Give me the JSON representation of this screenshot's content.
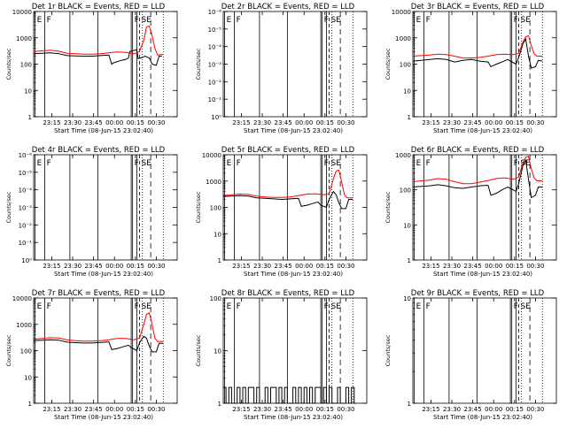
{
  "shared": {
    "x_tick_labels": [
      "23:15",
      "23:30",
      "23:45",
      "00:00",
      "00:15",
      "00:30"
    ],
    "x_label": "Start Time (08-Jun-15 23:02:40)",
    "y_label": "Counts/sec",
    "series_colors": {
      "events": "#000000",
      "lld": "#ff0000"
    }
  },
  "chart_data": [
    {
      "id": "det1",
      "type": "line",
      "title": "Det 1r BLACK = Events, RED = LLD",
      "yscale": "log",
      "ylim": [
        1,
        10000
      ],
      "y_ticks": [
        "1",
        "10",
        "100",
        "1000",
        "10000"
      ],
      "x_ticks": [
        "23:15",
        "23:30",
        "23:45",
        "00:00",
        "00:15",
        "00:30"
      ],
      "xlim": [
        "23:02",
        "00:45"
      ],
      "flags": [
        "E",
        "F",
        "F",
        "SE"
      ],
      "series": [
        {
          "key": "events",
          "x": [
            "23:02",
            "23:08",
            "23:14",
            "23:20",
            "23:26",
            "23:32",
            "23:38",
            "23:44",
            "23:50",
            "23:56",
            "23:58",
            "23:59",
            "00:01",
            "00:05",
            "00:08",
            "00:10",
            "00:11",
            "00:16",
            "00:17",
            "00:20",
            "00:22",
            "00:25",
            "00:27",
            "00:30",
            "00:32",
            "00:34"
          ],
          "y": [
            250,
            260,
            270,
            250,
            210,
            205,
            200,
            200,
            210,
            220,
            100,
            110,
            120,
            140,
            150,
            170,
            300,
            350,
            160,
            180,
            200,
            170,
            100,
            90,
            200,
            200
          ]
        },
        {
          "key": "lld",
          "x": [
            "23:02",
            "23:08",
            "23:14",
            "23:20",
            "23:26",
            "23:32",
            "23:38",
            "23:44",
            "23:50",
            "23:56",
            "00:02",
            "00:08",
            "00:14",
            "00:18",
            "00:21",
            "00:23",
            "00:25",
            "00:27",
            "00:29",
            "00:31",
            "00:33",
            "00:35"
          ],
          "y": [
            300,
            320,
            340,
            310,
            260,
            250,
            240,
            240,
            250,
            270,
            290,
            280,
            250,
            300,
            800,
            2600,
            2800,
            1200,
            400,
            220,
            230,
            230
          ]
        }
      ]
    },
    {
      "id": "det2",
      "type": "line",
      "title": "Det 2r BLACK = Events, RED = LLD",
      "yscale": "log",
      "ylim": [
        1,
        10000
      ],
      "y_ticks": [
        "10⁰",
        "10⁻¹",
        "10⁻²",
        "10⁻³",
        "10⁻⁴",
        "10⁻⁵",
        "10⁻⁶"
      ],
      "x_ticks": [
        "23:15",
        "23:30",
        "23:45",
        "00:00",
        "00:15",
        "00:30"
      ],
      "xlim": [
        "23:02",
        "00:45"
      ],
      "flags": [
        "E",
        "F",
        "F",
        "SE"
      ],
      "series": []
    },
    {
      "id": "det3",
      "type": "line",
      "title": "Det 3r BLACK = Events, RED = LLD",
      "yscale": "log",
      "ylim": [
        1,
        10000
      ],
      "y_ticks": [
        "1",
        "10",
        "100",
        "1000",
        "10000"
      ],
      "x_ticks": [
        "23:15",
        "23:30",
        "23:45",
        "00:00",
        "00:15",
        "00:30"
      ],
      "xlim": [
        "23:02",
        "00:45"
      ],
      "flags": [
        "E",
        "F",
        "F",
        "SE"
      ],
      "series": [
        {
          "key": "events",
          "x": [
            "23:02",
            "23:08",
            "23:14",
            "23:20",
            "23:26",
            "23:32",
            "23:38",
            "23:44",
            "23:50",
            "23:56",
            "23:58",
            "00:02",
            "00:06",
            "00:10",
            "00:12",
            "00:16",
            "00:18",
            "00:21",
            "00:23",
            "00:25",
            "00:27",
            "00:30",
            "00:32",
            "00:35"
          ],
          "y": [
            130,
            140,
            150,
            160,
            150,
            120,
            140,
            150,
            130,
            120,
            80,
            100,
            120,
            150,
            130,
            100,
            180,
            600,
            900,
            200,
            70,
            80,
            140,
            130
          ]
        },
        {
          "key": "lld",
          "x": [
            "23:02",
            "23:08",
            "23:14",
            "23:20",
            "23:26",
            "23:32",
            "23:38",
            "23:44",
            "23:50",
            "23:56",
            "00:02",
            "00:08",
            "00:14",
            "00:18",
            "00:21",
            "00:23",
            "00:25",
            "00:27",
            "00:29",
            "00:31",
            "00:33",
            "00:35"
          ],
          "y": [
            200,
            210,
            220,
            240,
            230,
            200,
            170,
            170,
            180,
            200,
            230,
            240,
            230,
            260,
            700,
            1100,
            1200,
            500,
            250,
            200,
            200,
            200
          ]
        }
      ]
    },
    {
      "id": "det4",
      "type": "line",
      "title": "Det 4r BLACK = Events, RED = LLD",
      "yscale": "log",
      "ylim": [
        1,
        10000
      ],
      "y_ticks": [
        "10⁰",
        "10⁻¹",
        "10⁻²",
        "10⁻³",
        "10⁻⁴",
        "10⁻⁵",
        "10⁻⁶"
      ],
      "x_ticks": [
        "23:15",
        "23:30",
        "23:45",
        "00:00",
        "00:15",
        "00:30"
      ],
      "xlim": [
        "23:02",
        "00:45"
      ],
      "flags": [
        "E",
        "F",
        "F",
        "SE"
      ],
      "series": []
    },
    {
      "id": "det5",
      "type": "line",
      "title": "Det 5r BLACK = Events, RED = LLD",
      "yscale": "log",
      "ylim": [
        1,
        10000
      ],
      "y_ticks": [
        "1",
        "10",
        "100",
        "1000",
        "10000"
      ],
      "x_ticks": [
        "23:15",
        "23:30",
        "23:45",
        "00:00",
        "00:15",
        "00:30"
      ],
      "xlim": [
        "23:02",
        "00:45"
      ],
      "flags": [
        "E",
        "F",
        "F",
        "SE"
      ],
      "series": [
        {
          "key": "events",
          "x": [
            "23:02",
            "23:08",
            "23:14",
            "23:20",
            "23:26",
            "23:32",
            "23:38",
            "23:44",
            "23:50",
            "23:56",
            "23:58",
            "00:02",
            "00:06",
            "00:10",
            "00:12",
            "00:16",
            "00:18",
            "00:21",
            "00:23",
            "00:25",
            "00:27",
            "00:30",
            "00:32",
            "00:35"
          ],
          "y": [
            260,
            270,
            280,
            270,
            230,
            220,
            210,
            200,
            210,
            220,
            110,
            120,
            140,
            160,
            120,
            100,
            200,
            400,
            300,
            150,
            90,
            90,
            200,
            200
          ]
        },
        {
          "key": "lld",
          "x": [
            "23:02",
            "23:08",
            "23:14",
            "23:20",
            "23:26",
            "23:32",
            "23:38",
            "23:44",
            "23:50",
            "23:56",
            "00:02",
            "00:08",
            "00:14",
            "00:18",
            "00:21",
            "00:23",
            "00:25",
            "00:27",
            "00:29",
            "00:31",
            "00:33",
            "00:35"
          ],
          "y": [
            280,
            300,
            320,
            310,
            270,
            250,
            240,
            240,
            250,
            280,
            320,
            330,
            300,
            330,
            1200,
            2400,
            2600,
            900,
            300,
            230,
            230,
            230
          ]
        }
      ]
    },
    {
      "id": "det6",
      "type": "line",
      "title": "Det 6r BLACK = Events, RED = LLD",
      "yscale": "log",
      "ylim": [
        1,
        1000
      ],
      "y_ticks": [
        "1",
        "10",
        "100",
        "1000"
      ],
      "x_ticks": [
        "23:15",
        "23:30",
        "23:45",
        "00:00",
        "00:15",
        "00:30"
      ],
      "xlim": [
        "23:02",
        "00:45"
      ],
      "flags": [
        "E",
        "F",
        "F",
        "SE"
      ],
      "series": [
        {
          "key": "events",
          "x": [
            "23:02",
            "23:08",
            "23:14",
            "23:20",
            "23:26",
            "23:32",
            "23:38",
            "23:44",
            "23:50",
            "23:56",
            "23:58",
            "00:02",
            "00:06",
            "00:10",
            "00:12",
            "00:16",
            "00:18",
            "00:21",
            "00:23",
            "00:25",
            "00:27",
            "00:30",
            "00:32",
            "00:35"
          ],
          "y": [
            120,
            125,
            130,
            140,
            130,
            115,
            110,
            120,
            130,
            135,
            70,
            80,
            100,
            120,
            110,
            90,
            150,
            500,
            700,
            200,
            60,
            70,
            120,
            120
          ]
        },
        {
          "key": "lld",
          "x": [
            "23:02",
            "23:08",
            "23:14",
            "23:20",
            "23:26",
            "23:32",
            "23:38",
            "23:44",
            "23:50",
            "23:56",
            "00:02",
            "00:08",
            "00:14",
            "00:18",
            "00:21",
            "00:23",
            "00:25",
            "00:27",
            "00:29",
            "00:31",
            "00:33",
            "00:35"
          ],
          "y": [
            170,
            180,
            190,
            210,
            200,
            170,
            150,
            150,
            165,
            185,
            210,
            220,
            200,
            230,
            600,
            850,
            900,
            400,
            220,
            180,
            180,
            180
          ]
        }
      ]
    },
    {
      "id": "det7",
      "type": "line",
      "title": "Det 7r BLACK = Events, RED = LLD",
      "yscale": "log",
      "ylim": [
        1,
        10000
      ],
      "y_ticks": [
        "1",
        "10",
        "100",
        "1000",
        "10000"
      ],
      "x_ticks": [
        "23:15",
        "23:30",
        "23:45",
        "00:00",
        "00:15",
        "00:30"
      ],
      "xlim": [
        "23:02",
        "00:45"
      ],
      "flags": [
        "E",
        "F",
        "F",
        "SE"
      ],
      "series": [
        {
          "key": "events",
          "x": [
            "23:02",
            "23:08",
            "23:14",
            "23:20",
            "23:26",
            "23:32",
            "23:38",
            "23:44",
            "23:50",
            "23:56",
            "23:58",
            "00:02",
            "00:06",
            "00:10",
            "00:12",
            "00:16",
            "00:18",
            "00:21",
            "00:23",
            "00:25",
            "00:27",
            "00:30",
            "00:32",
            "00:35"
          ],
          "y": [
            240,
            250,
            260,
            250,
            210,
            200,
            195,
            195,
            205,
            215,
            110,
            120,
            140,
            160,
            130,
            100,
            200,
            350,
            300,
            150,
            90,
            90,
            190,
            190
          ]
        },
        {
          "key": "lld",
          "x": [
            "23:02",
            "23:08",
            "23:14",
            "23:20",
            "23:26",
            "23:32",
            "23:38",
            "23:44",
            "23:50",
            "23:56",
            "00:02",
            "00:08",
            "00:14",
            "00:18",
            "00:21",
            "00:23",
            "00:25",
            "00:27",
            "00:29",
            "00:31",
            "00:33",
            "00:35"
          ],
          "y": [
            270,
            290,
            310,
            300,
            260,
            240,
            230,
            230,
            240,
            260,
            290,
            290,
            260,
            300,
            1000,
            2400,
            2700,
            1000,
            300,
            220,
            220,
            220
          ]
        }
      ]
    },
    {
      "id": "det8",
      "type": "line",
      "title": "Det 8r BLACK = Events, RED = LLD",
      "yscale": "log",
      "ylim": [
        1,
        100
      ],
      "y_ticks": [
        "1",
        "10",
        "100"
      ],
      "x_ticks": [
        "23:15",
        "23:30",
        "23:45",
        "00:00",
        "00:15",
        "00:30"
      ],
      "xlim": [
        "23:02",
        "00:45"
      ],
      "flags": [
        "E",
        "F",
        "F",
        "SE"
      ],
      "series": [
        {
          "key": "events",
          "x": [
            "23:02",
            "23:04",
            "23:06",
            "23:08",
            "23:10",
            "23:12",
            "23:14",
            "23:16",
            "23:18",
            "23:20",
            "23:22",
            "23:24",
            "23:26",
            "23:28",
            "23:30",
            "23:32",
            "23:34",
            "23:36",
            "23:38",
            "23:40",
            "23:42",
            "23:44",
            "23:46",
            "23:48",
            "23:50",
            "23:52",
            "23:54",
            "23:56",
            "23:58",
            "00:00",
            "00:02",
            "00:04",
            "00:06",
            "00:08",
            "00:10",
            "00:12",
            "00:14",
            "00:16",
            "00:18",
            "00:20",
            "00:22",
            "00:24",
            "00:26",
            "00:28",
            "00:30",
            "00:32",
            "00:34",
            "00:36"
          ],
          "y": [
            2,
            1,
            2,
            1,
            1,
            2,
            1,
            2,
            1,
            2,
            2,
            1,
            2,
            1,
            1,
            2,
            1,
            2,
            2,
            1,
            2,
            1,
            2,
            1,
            1,
            2,
            1,
            2,
            1,
            2,
            1,
            2,
            1,
            2,
            2,
            1,
            2,
            1,
            2,
            1,
            1,
            2,
            1,
            1,
            2,
            1,
            2,
            1
          ]
        }
      ]
    },
    {
      "id": "det9",
      "type": "line",
      "title": "Det 9r BLACK = Events, RED = LLD",
      "yscale": "log",
      "ylim": [
        1,
        10
      ],
      "y_ticks": [
        "1",
        "10"
      ],
      "x_ticks": [
        "23:15",
        "23:30",
        "23:45",
        "00:00",
        "00:15",
        "00:30"
      ],
      "xlim": [
        "23:02",
        "00:45"
      ],
      "flags": [
        "E",
        "F",
        "F",
        "SE"
      ],
      "series": []
    }
  ]
}
